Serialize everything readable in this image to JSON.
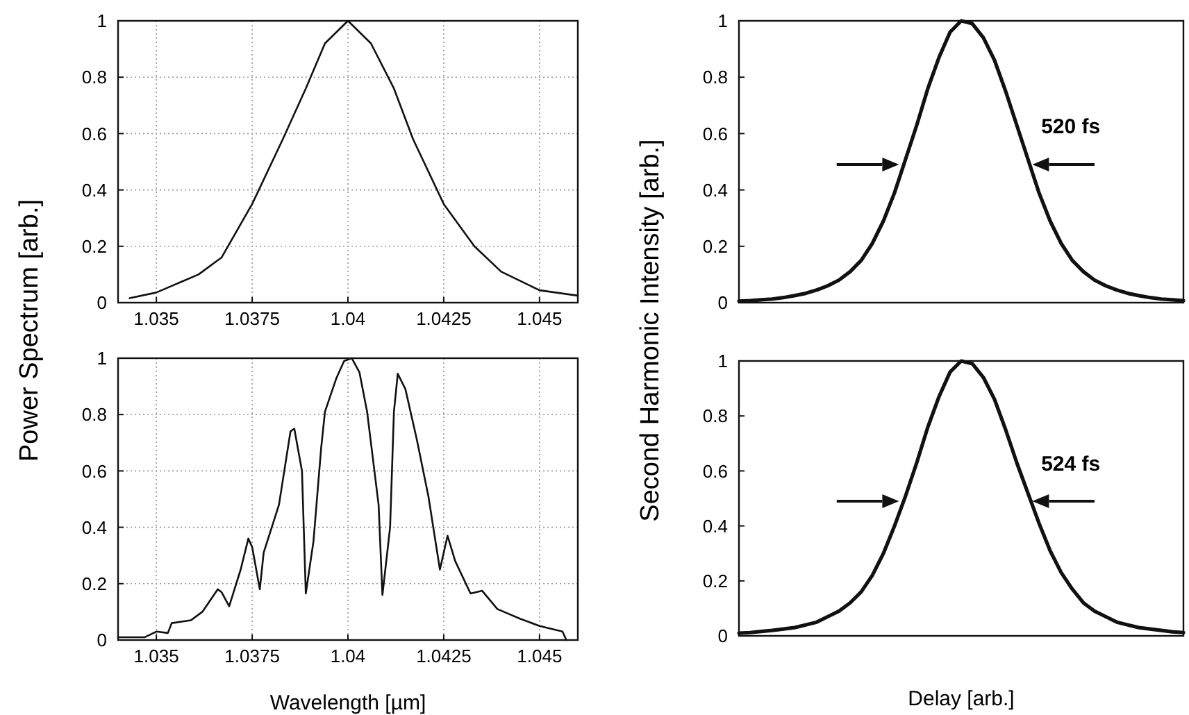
{
  "chart_data": [
    {
      "type": "line",
      "ylabel": "Power Spectrum [arb.]",
      "x": [
        1.0343,
        1.035,
        1.0361,
        1.0367,
        1.0375,
        1.0383,
        1.0389,
        1.0394,
        1.04,
        1.0406,
        1.0412,
        1.0417,
        1.0425,
        1.0433,
        1.044,
        1.045,
        1.046
      ],
      "series": [
        {
          "color": "#111111",
          "values": [
            0.016,
            0.036,
            0.1,
            0.16,
            0.35,
            0.58,
            0.76,
            0.92,
            1.0,
            0.92,
            0.76,
            0.58,
            0.35,
            0.2,
            0.11,
            0.044,
            0.025
          ]
        }
      ],
      "xlim": [
        1.034,
        1.046
      ],
      "ylim": [
        0,
        1
      ],
      "xticks": [
        1.035,
        1.0375,
        1.04,
        1.0425,
        1.045
      ],
      "yticks": [
        0,
        0.2,
        0.4,
        0.6,
        0.8,
        1
      ],
      "grid": true
    },
    {
      "type": "line",
      "xlabel": "Wavelength [µm]",
      "x": [
        1.034,
        1.0347,
        1.035,
        1.0353,
        1.0354,
        1.0359,
        1.0362,
        1.0366,
        1.0367,
        1.0369,
        1.0372,
        1.0374,
        1.0375,
        1.0377,
        1.0378,
        1.0382,
        1.0385,
        1.0386,
        1.0388,
        1.0389,
        1.0391,
        1.0393,
        1.0394,
        1.0397,
        1.0399,
        1.0401,
        1.0403,
        1.0405,
        1.0408,
        1.0409,
        1.0411,
        1.0412,
        1.0413,
        1.0415,
        1.0418,
        1.0421,
        1.0424,
        1.0426,
        1.0428,
        1.0432,
        1.0435,
        1.0439,
        1.0445,
        1.045,
        1.0456,
        1.0457
      ],
      "series": [
        {
          "color": "#111111",
          "values": [
            0.01,
            0.01,
            0.03,
            0.025,
            0.06,
            0.07,
            0.1,
            0.18,
            0.17,
            0.12,
            0.25,
            0.36,
            0.33,
            0.18,
            0.31,
            0.48,
            0.74,
            0.75,
            0.6,
            0.165,
            0.35,
            0.68,
            0.81,
            0.93,
            0.99,
            1.0,
            0.95,
            0.81,
            0.48,
            0.16,
            0.4,
            0.81,
            0.945,
            0.89,
            0.71,
            0.51,
            0.25,
            0.37,
            0.28,
            0.165,
            0.175,
            0.11,
            0.075,
            0.05,
            0.03,
            0.0
          ]
        }
      ],
      "xlim": [
        1.034,
        1.046
      ],
      "ylim": [
        0,
        1
      ],
      "xticks": [
        1.035,
        1.0375,
        1.04,
        1.0425,
        1.045
      ],
      "yticks": [
        0,
        0.2,
        0.4,
        0.6,
        0.8,
        1
      ],
      "grid": true
    },
    {
      "type": "line",
      "ylabel": "Second Harmonic Intensity [arb.]",
      "annotations": [
        "520 fs"
      ],
      "categories": [
        null,
        null,
        null,
        null,
        null,
        null,
        null,
        null,
        null,
        null,
        null,
        null,
        null,
        null,
        null,
        null,
        null,
        null,
        null,
        null,
        null,
        null,
        null,
        null,
        null,
        null,
        null,
        null,
        null,
        null,
        null,
        null,
        null,
        null,
        null,
        null,
        null,
        null,
        null,
        null,
        null
      ],
      "series": [
        {
          "color": "#111111",
          "values": [
            0.005,
            0.007,
            0.01,
            0.013,
            0.018,
            0.025,
            0.033,
            0.045,
            0.06,
            0.08,
            0.11,
            0.15,
            0.21,
            0.29,
            0.39,
            0.51,
            0.63,
            0.76,
            0.87,
            0.96,
            1.0,
            0.99,
            0.94,
            0.86,
            0.75,
            0.63,
            0.51,
            0.39,
            0.29,
            0.21,
            0.15,
            0.11,
            0.08,
            0.06,
            0.045,
            0.033,
            0.025,
            0.018,
            0.013,
            0.01,
            0.007
          ]
        }
      ],
      "ylim": [
        0,
        1
      ],
      "yticks": [
        0,
        0.2,
        0.4,
        0.6,
        0.8,
        1
      ],
      "tick_labels": "y"
    },
    {
      "type": "line",
      "xlabel": "Delay [arb.]",
      "annotations": [
        "524 fs"
      ],
      "categories": [
        null,
        null,
        null,
        null,
        null,
        null,
        null,
        null,
        null,
        null,
        null,
        null,
        null,
        null,
        null,
        null,
        null,
        null,
        null,
        null,
        null,
        null,
        null,
        null,
        null,
        null,
        null,
        null,
        null,
        null,
        null,
        null,
        null,
        null,
        null,
        null,
        null,
        null,
        null,
        null,
        null
      ],
      "series": [
        {
          "color": "#111111",
          "values": [
            0.01,
            0.012,
            0.016,
            0.02,
            0.025,
            0.03,
            0.04,
            0.05,
            0.07,
            0.09,
            0.12,
            0.16,
            0.22,
            0.3,
            0.4,
            0.51,
            0.63,
            0.76,
            0.87,
            0.96,
            1.0,
            0.99,
            0.94,
            0.86,
            0.75,
            0.63,
            0.52,
            0.41,
            0.31,
            0.23,
            0.17,
            0.12,
            0.09,
            0.07,
            0.05,
            0.04,
            0.03,
            0.025,
            0.02,
            0.015,
            0.012
          ]
        }
      ],
      "ylim": [
        0,
        1
      ],
      "yticks": [
        0,
        0.2,
        0.4,
        0.6,
        0.8,
        1
      ],
      "tick_labels": "y"
    }
  ]
}
